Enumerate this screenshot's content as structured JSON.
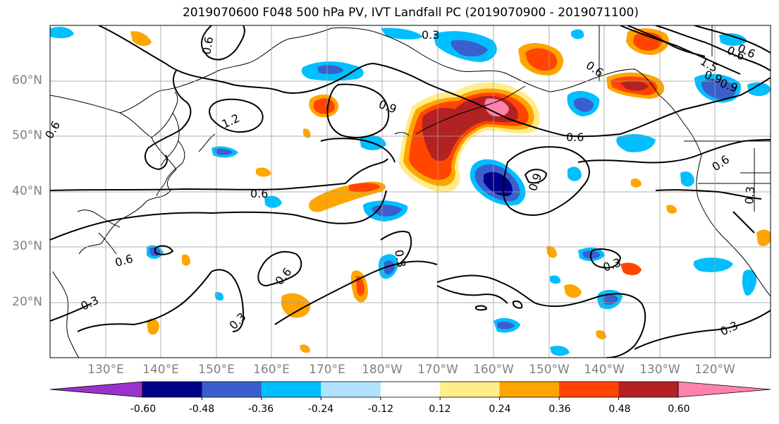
{
  "title": "2019070600 F048 500 hPa PV, IVT Landfall PC (2019070900 - 2019071100)",
  "lat_labels": [
    "60°N",
    "50°N",
    "40°N",
    "30°N",
    "20°N"
  ],
  "lon_labels": [
    "130°E",
    "140°E",
    "150°E",
    "160°E",
    "170°E",
    "180°W",
    "170°W",
    "160°W",
    "150°W",
    "140°W",
    "130°W",
    "120°W"
  ],
  "colorbar": {
    "ticks": [
      "-0.60",
      "-0.48",
      "-0.36",
      "-0.24",
      "-0.12",
      "0.12",
      "0.24",
      "0.36",
      "0.48",
      "0.60"
    ],
    "colors": [
      "#9a32cd",
      "#00008b",
      "#3a5fcd",
      "#00bfff",
      "#b0e2ff",
      "#ffffff",
      "#ffec8b",
      "#ffa500",
      "#ff4500",
      "#b22222",
      "#ff82ab"
    ]
  },
  "contour_labels": [
    "0.3",
    "0.6",
    "0.9",
    "1.2",
    "1.5"
  ],
  "contour_label_instances": [
    {
      "text": "0.3"
    },
    {
      "text": "0.6"
    },
    {
      "text": "0.6"
    },
    {
      "text": "0.6"
    },
    {
      "text": "0.6"
    },
    {
      "text": "0.6"
    },
    {
      "text": "0.6"
    },
    {
      "text": "0.6"
    },
    {
      "text": "0.9"
    },
    {
      "text": "0.9"
    },
    {
      "text": "0.9"
    },
    {
      "text": "1.2"
    },
    {
      "text": "1.5"
    },
    {
      "text": "0.3"
    },
    {
      "text": "0.3"
    },
    {
      "text": "0.3"
    },
    {
      "text": "0.3"
    },
    {
      "text": "0.3"
    },
    {
      "text": "0.6"
    },
    {
      "text": "0.6"
    },
    {
      "text": "0.9"
    },
    {
      "text": "0.6"
    },
    {
      "text": "0.3"
    }
  ]
}
